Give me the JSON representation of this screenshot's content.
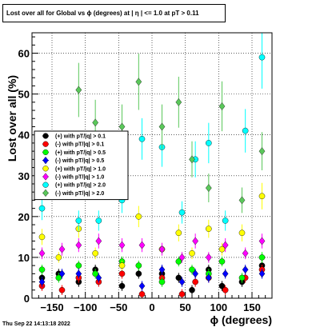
{
  "title": "Lost over all for Global vs ϕ (degrees) at |  η | <= 1.0 at pT > 0.11",
  "footer_date": "Thu Sep 22 14:13:18 2022",
  "chart_data": {
    "type": "scatter",
    "title": "Lost over all for Global vs ϕ (degrees) at |  η | <= 1.0 at pT > 0.11",
    "xlabel": "ϕ (degrees)",
    "ylabel": "Lost over all (%)",
    "xlim": [
      -180,
      180
    ],
    "ylim": [
      0,
      65
    ],
    "xticks": [
      -150,
      -100,
      -50,
      0,
      50,
      100,
      150
    ],
    "xtick_labels": [
      "−150",
      "−100",
      "−50",
      "0",
      "50",
      "100",
      "150"
    ],
    "yticks": [
      0,
      10,
      20,
      30,
      40,
      50,
      60
    ],
    "ytick_labels": [
      "0",
      "10",
      "20",
      "30",
      "40",
      "50",
      "60"
    ],
    "grid": true,
    "legend_position": "left",
    "series": [
      {
        "name": "(+) with pT/|q| > 0.1",
        "color": "#000000",
        "marker": "circle",
        "x": [
          -165,
          -140,
          -110,
          -85,
          -45,
          -20,
          15,
          40,
          60,
          85,
          105,
          135,
          165
        ],
        "y": [
          5,
          6,
          4,
          7,
          3,
          6,
          6,
          5,
          2,
          7,
          3,
          4,
          8
        ]
      },
      {
        "name": "(-) with pT/|q| > 0.1",
        "color": "#ff0000",
        "marker": "circle",
        "x": [
          -165,
          -135,
          -110,
          -80,
          -45,
          -15,
          15,
          45,
          65,
          85,
          110,
          140,
          165
        ],
        "y": [
          3,
          2,
          5,
          4,
          6,
          1,
          5,
          1,
          4,
          5,
          2,
          5,
          7
        ]
      },
      {
        "name": "(+) with pT/|q| > 0.5",
        "color": "#00ff00",
        "marker": "circle",
        "x": [
          -165,
          -140,
          -110,
          -85,
          -45,
          -20,
          15,
          40,
          60,
          85,
          105,
          135,
          165
        ],
        "y": [
          7,
          5,
          8,
          6,
          9,
          8,
          4,
          9,
          7,
          6,
          9,
          5,
          10
        ]
      },
      {
        "name": "(-) with pT/|q| > 0.5",
        "color": "#0000ff",
        "marker": "diamond",
        "x": [
          -165,
          -135,
          -110,
          -80,
          -45,
          -15,
          15,
          45,
          65,
          85,
          110,
          140,
          165
        ],
        "y": [
          4,
          6,
          6,
          5,
          8,
          3,
          7,
          4,
          6,
          5,
          6,
          7,
          6
        ]
      },
      {
        "name": "(+) with pT/|q| > 1.0",
        "color": "#ffff00",
        "marker": "circle",
        "x": [
          -165,
          -140,
          -110,
          -85,
          -45,
          -20,
          15,
          40,
          60,
          85,
          105,
          135,
          165
        ],
        "y": [
          15,
          10,
          17,
          11,
          8,
          20,
          12,
          16,
          11,
          17,
          12,
          16,
          25
        ]
      },
      {
        "name": "(-) with pT/|q| > 1.0",
        "color": "#ff00ff",
        "marker": "diamond",
        "x": [
          -165,
          -135,
          -110,
          -80,
          -45,
          -15,
          15,
          45,
          65,
          85,
          110,
          140,
          165
        ],
        "y": [
          11,
          12,
          13,
          14,
          13,
          13,
          12,
          10,
          14,
          10,
          13,
          11,
          14
        ]
      },
      {
        "name": "(+) with pT/|q| > 2.0",
        "color": "#00ffff",
        "marker": "circle",
        "x": [
          -165,
          -135,
          -110,
          -80,
          -45,
          -15,
          15,
          45,
          65,
          85,
          110,
          140,
          165
        ],
        "y": [
          22,
          31,
          19,
          19,
          24,
          39,
          37,
          21,
          34,
          38,
          19,
          41,
          59
        ]
      },
      {
        "name": "(-) with pT/|q| > 2.0",
        "color": "#5ac85a",
        "marker": "diamond",
        "x": [
          -165,
          -140,
          -110,
          -85,
          -45,
          -20,
          15,
          40,
          60,
          85,
          105,
          135,
          165
        ],
        "y": [
          31,
          32,
          51,
          43,
          42,
          53,
          42,
          48,
          34,
          27,
          47,
          24,
          36
        ]
      }
    ]
  }
}
